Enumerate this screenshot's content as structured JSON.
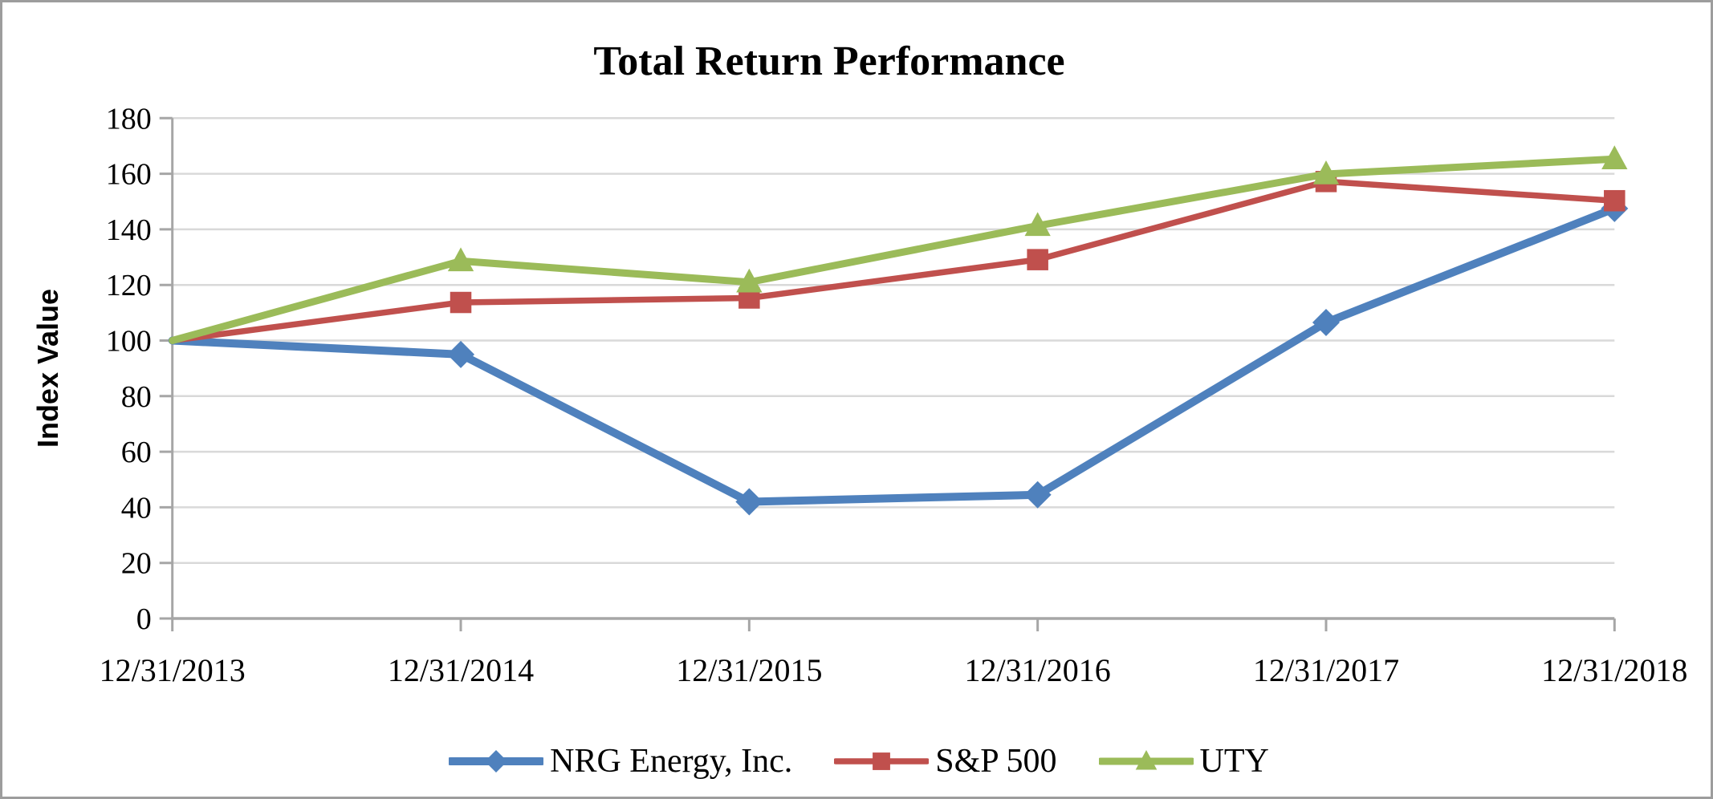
{
  "chart_data": {
    "type": "line",
    "title": "Total Return Performance",
    "ylabel": "Index Value",
    "categories": [
      "12/31/2013",
      "12/31/2014",
      "12/31/2015",
      "12/31/2016",
      "12/31/2017",
      "12/31/2018"
    ],
    "series": [
      {
        "name": "NRG Energy, Inc.",
        "marker": "diamond",
        "color": "#4F81BD",
        "values": [
          100,
          95,
          42,
          44.5,
          106.5,
          147.5
        ]
      },
      {
        "name": "S&P 500",
        "marker": "square",
        "color": "#C0504D",
        "values": [
          100,
          113.7,
          115.3,
          129.1,
          157.2,
          150.3
        ]
      },
      {
        "name": "UTY",
        "marker": "triangle",
        "color": "#9BBB59",
        "values": [
          100,
          128.6,
          121.0,
          141.3,
          159.9,
          165.3
        ]
      }
    ],
    "y_ticks": [
      0,
      20,
      40,
      60,
      80,
      100,
      120,
      140,
      160,
      180
    ],
    "ylim": [
      0,
      180
    ],
    "grid": "horizontal",
    "legend_position": "bottom",
    "colors": {
      "gridline": "#D9D9D9",
      "axis": "#A6A6A6",
      "text": "#000000",
      "background": "#FFFFFF",
      "frame": "#9D9D9D"
    }
  }
}
